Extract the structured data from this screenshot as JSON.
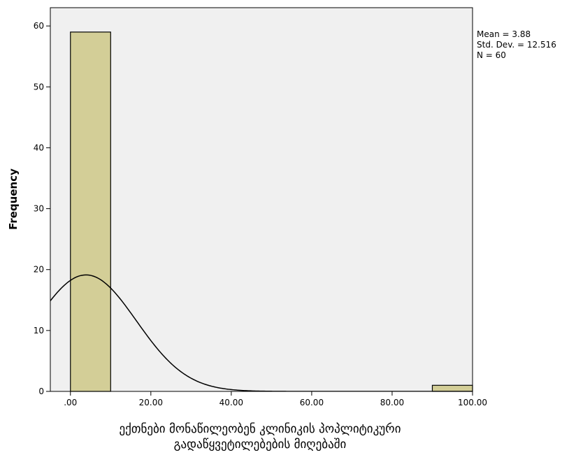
{
  "chart_data": {
    "type": "bar",
    "subtype": "histogram",
    "title": "",
    "xlabel_lines": [
      "ექთნები მონაწილეობენ კლინიკის პოპლიტიკური",
      "გადაწყვეტილებების მიღებაში"
    ],
    "ylabel": "Frequency",
    "xlim": [
      -5,
      100
    ],
    "ylim": [
      0,
      63
    ],
    "x_ticks": [
      0,
      20,
      40,
      60,
      80,
      100
    ],
    "x_tick_labels": [
      ".00",
      "20.00",
      "40.00",
      "60.00",
      "80.00",
      "100.00"
    ],
    "y_ticks": [
      0,
      10,
      20,
      30,
      40,
      50,
      60
    ],
    "y_tick_labels": [
      "0",
      "10",
      "20",
      "30",
      "40",
      "50",
      "60"
    ],
    "bins": [
      {
        "x0": 0,
        "x1": 10,
        "count": 59
      },
      {
        "x0": 90,
        "x1": 100,
        "count": 1
      }
    ],
    "normal_curve": {
      "mean": 3.88,
      "sd": 12.516,
      "n": 60,
      "bin_width": 10
    },
    "stats_lines": [
      "Mean = 3.88",
      "Std. Dev. = 12.516",
      "N = 60"
    ],
    "grid": false,
    "legend": "none",
    "colors": {
      "plot_background": "#f0f0f0",
      "bar_fill": "#d3ce97",
      "bar_stroke": "#000000",
      "curve": "#000000"
    }
  }
}
